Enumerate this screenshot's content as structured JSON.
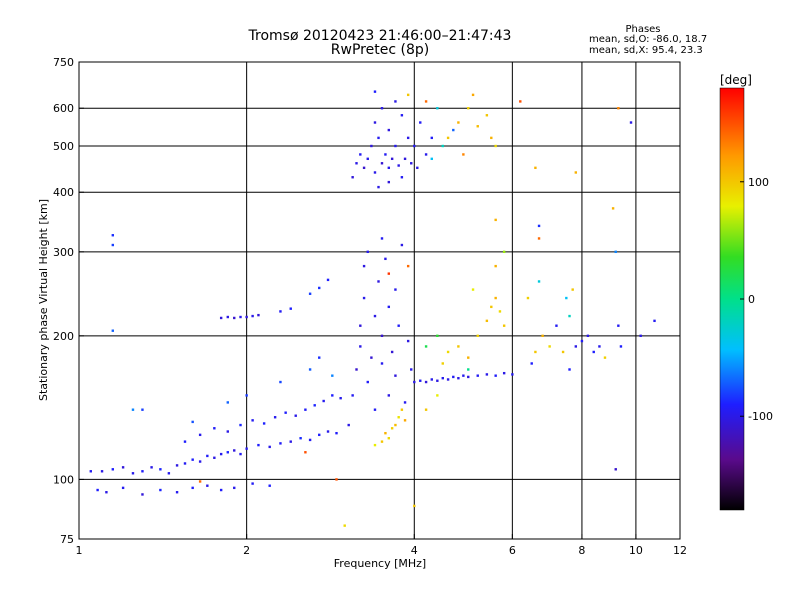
{
  "header": {
    "title_line1": "Tromsø 20120423 21:46:00–21:47:43",
    "title_line2": "RwPretec (8p)"
  },
  "phases_box": {
    "heading": "Phases",
    "line_o": "mean, sd,O: -86.0, 18.7",
    "line_x": "mean, sd,X:  95.4, 23.3"
  },
  "colorbar": {
    "label": "[deg]",
    "ticks": [
      {
        "value": 100,
        "label": "100"
      },
      {
        "value": 0,
        "label": "0"
      },
      {
        "value": -100,
        "label": "-100"
      }
    ],
    "range": [
      -180,
      180
    ]
  },
  "chart_data": {
    "type": "scatter",
    "xlabel": "Frequency [MHz]",
    "ylabel": "Stationary phase Virtual Height [km]",
    "x_scale": "log",
    "y_scale": "log",
    "xlim": [
      1,
      12
    ],
    "ylim": [
      75,
      750
    ],
    "grid": true,
    "x_ticks": [
      {
        "value": 1,
        "label": "1"
      },
      {
        "value": 2,
        "label": "2"
      },
      {
        "value": 4,
        "label": "4"
      },
      {
        "value": 6,
        "label": "6"
      },
      {
        "value": 8,
        "label": "8"
      },
      {
        "value": 10,
        "label": "10"
      },
      {
        "value": 12,
        "label": "12"
      }
    ],
    "x_grid": [
      2,
      4,
      6,
      8,
      10
    ],
    "y_ticks": [
      {
        "value": 75,
        "label": "75"
      },
      {
        "value": 100,
        "label": "100"
      },
      {
        "value": 200,
        "label": "200"
      },
      {
        "value": 300,
        "label": "300"
      },
      {
        "value": 400,
        "label": "400"
      },
      {
        "value": 500,
        "label": "500"
      },
      {
        "value": 600,
        "label": "600"
      },
      {
        "value": 750,
        "label": "750"
      }
    ],
    "y_grid": [
      100,
      200,
      300,
      400,
      500,
      600
    ],
    "color_key": "phase",
    "points": [
      {
        "f": 1.05,
        "h": 104,
        "p": -95
      },
      {
        "f": 1.1,
        "h": 104,
        "p": -100
      },
      {
        "f": 1.15,
        "h": 105,
        "p": -90
      },
      {
        "f": 1.2,
        "h": 106,
        "p": -105
      },
      {
        "f": 1.25,
        "h": 103,
        "p": -98
      },
      {
        "f": 1.3,
        "h": 104,
        "p": -92
      },
      {
        "f": 1.35,
        "h": 106,
        "p": -100
      },
      {
        "f": 1.4,
        "h": 105,
        "p": -88
      },
      {
        "f": 1.45,
        "h": 103,
        "p": -96
      },
      {
        "f": 1.5,
        "h": 107,
        "p": -102
      },
      {
        "f": 1.55,
        "h": 108,
        "p": -95
      },
      {
        "f": 1.6,
        "h": 110,
        "p": -90
      },
      {
        "f": 1.65,
        "h": 109,
        "p": -99
      },
      {
        "f": 1.7,
        "h": 112,
        "p": -93
      },
      {
        "f": 1.75,
        "h": 111,
        "p": -101
      },
      {
        "f": 1.8,
        "h": 113,
        "p": -96
      },
      {
        "f": 1.85,
        "h": 114,
        "p": -88
      },
      {
        "f": 1.9,
        "h": 115,
        "p": -104
      },
      {
        "f": 1.95,
        "h": 113,
        "p": -94
      },
      {
        "f": 2.0,
        "h": 116,
        "p": -97
      },
      {
        "f": 2.1,
        "h": 118,
        "p": -91
      },
      {
        "f": 2.2,
        "h": 117,
        "p": -99
      },
      {
        "f": 2.3,
        "h": 119,
        "p": -93
      },
      {
        "f": 2.4,
        "h": 120,
        "p": -100
      },
      {
        "f": 2.5,
        "h": 122,
        "p": -86
      },
      {
        "f": 2.6,
        "h": 121,
        "p": -95
      },
      {
        "f": 2.7,
        "h": 124,
        "p": -90
      },
      {
        "f": 2.8,
        "h": 126,
        "p": -98
      },
      {
        "f": 2.9,
        "h": 125,
        "p": -92
      },
      {
        "f": 1.08,
        "h": 95,
        "p": -90
      },
      {
        "f": 1.12,
        "h": 94,
        "p": -100
      },
      {
        "f": 1.2,
        "h": 96,
        "p": -95
      },
      {
        "f": 1.3,
        "h": 93,
        "p": -105
      },
      {
        "f": 1.4,
        "h": 95,
        "p": -88
      },
      {
        "f": 1.5,
        "h": 94,
        "p": -96
      },
      {
        "f": 1.6,
        "h": 96,
        "p": -90
      },
      {
        "f": 1.7,
        "h": 97,
        "p": -100
      },
      {
        "f": 1.8,
        "h": 95,
        "p": -92
      },
      {
        "f": 1.9,
        "h": 96,
        "p": -98
      },
      {
        "f": 2.05,
        "h": 98,
        "p": -94
      },
      {
        "f": 2.2,
        "h": 97,
        "p": -90
      },
      {
        "f": 1.55,
        "h": 120,
        "p": -90
      },
      {
        "f": 1.65,
        "h": 124,
        "p": -98
      },
      {
        "f": 1.75,
        "h": 128,
        "p": -93
      },
      {
        "f": 1.85,
        "h": 126,
        "p": -100
      },
      {
        "f": 1.95,
        "h": 130,
        "p": -87
      },
      {
        "f": 2.05,
        "h": 133,
        "p": -95
      },
      {
        "f": 2.15,
        "h": 131,
        "p": -89
      },
      {
        "f": 2.25,
        "h": 135,
        "p": -97
      },
      {
        "f": 2.35,
        "h": 138,
        "p": -91
      },
      {
        "f": 2.45,
        "h": 136,
        "p": -99
      },
      {
        "f": 2.55,
        "h": 140,
        "p": -93
      },
      {
        "f": 2.65,
        "h": 143,
        "p": -88
      },
      {
        "f": 2.75,
        "h": 146,
        "p": -96
      },
      {
        "f": 2.85,
        "h": 150,
        "p": -90
      },
      {
        "f": 2.95,
        "h": 148,
        "p": -98
      },
      {
        "f": 1.3,
        "h": 140,
        "p": -80
      },
      {
        "f": 1.6,
        "h": 132,
        "p": -75
      },
      {
        "f": 1.85,
        "h": 145,
        "p": -70
      },
      {
        "f": 2.0,
        "h": 150,
        "p": -82
      },
      {
        "f": 2.3,
        "h": 160,
        "p": -78
      },
      {
        "f": 2.6,
        "h": 170,
        "p": -72
      },
      {
        "f": 2.7,
        "h": 180,
        "p": -85
      },
      {
        "f": 2.85,
        "h": 165,
        "p": -60
      },
      {
        "f": 1.8,
        "h": 218,
        "p": -105
      },
      {
        "f": 1.85,
        "h": 219,
        "p": -100
      },
      {
        "f": 1.9,
        "h": 218,
        "p": -110
      },
      {
        "f": 1.95,
        "h": 219,
        "p": -98
      },
      {
        "f": 2.0,
        "h": 219,
        "p": -104
      },
      {
        "f": 2.05,
        "h": 220,
        "p": -99
      },
      {
        "f": 2.1,
        "h": 221,
        "p": -106
      },
      {
        "f": 2.3,
        "h": 225,
        "p": -95
      },
      {
        "f": 2.4,
        "h": 228,
        "p": -90
      },
      {
        "f": 2.6,
        "h": 245,
        "p": -80
      },
      {
        "f": 2.7,
        "h": 252,
        "p": -85
      },
      {
        "f": 2.8,
        "h": 262,
        "p": -90
      },
      {
        "f": 1.15,
        "h": 310,
        "p": -80
      },
      {
        "f": 1.15,
        "h": 325,
        "p": -85
      },
      {
        "f": 1.15,
        "h": 205,
        "p": -70
      },
      {
        "f": 3.05,
        "h": 130,
        "p": -100
      },
      {
        "f": 3.1,
        "h": 150,
        "p": -95
      },
      {
        "f": 3.15,
        "h": 170,
        "p": -110
      },
      {
        "f": 3.2,
        "h": 190,
        "p": -100
      },
      {
        "f": 3.2,
        "h": 210,
        "p": -105
      },
      {
        "f": 3.25,
        "h": 240,
        "p": -98
      },
      {
        "f": 3.25,
        "h": 280,
        "p": -102
      },
      {
        "f": 3.3,
        "h": 160,
        "p": -92
      },
      {
        "f": 3.3,
        "h": 300,
        "p": -97
      },
      {
        "f": 3.35,
        "h": 180,
        "p": -108
      },
      {
        "f": 3.4,
        "h": 220,
        "p": -100
      },
      {
        "f": 3.4,
        "h": 140,
        "p": -94
      },
      {
        "f": 3.45,
        "h": 260,
        "p": -103
      },
      {
        "f": 3.5,
        "h": 175,
        "p": -96
      },
      {
        "f": 3.5,
        "h": 200,
        "p": -110
      },
      {
        "f": 3.55,
        "h": 290,
        "p": -99
      },
      {
        "f": 3.6,
        "h": 150,
        "p": -101
      },
      {
        "f": 3.6,
        "h": 230,
        "p": -95
      },
      {
        "f": 3.65,
        "h": 185,
        "p": -107
      },
      {
        "f": 3.7,
        "h": 250,
        "p": -98
      },
      {
        "f": 3.7,
        "h": 165,
        "p": -104
      },
      {
        "f": 3.75,
        "h": 210,
        "p": -93
      },
      {
        "f": 3.8,
        "h": 310,
        "p": -100
      },
      {
        "f": 3.85,
        "h": 145,
        "p": -96
      },
      {
        "f": 3.9,
        "h": 195,
        "p": -102
      },
      {
        "f": 3.95,
        "h": 170,
        "p": -99
      },
      {
        "f": 3.4,
        "h": 118,
        "p": 80
      },
      {
        "f": 3.5,
        "h": 120,
        "p": 100
      },
      {
        "f": 3.55,
        "h": 125,
        "p": 110
      },
      {
        "f": 3.6,
        "h": 122,
        "p": 90
      },
      {
        "f": 3.65,
        "h": 128,
        "p": 95
      },
      {
        "f": 3.7,
        "h": 130,
        "p": 105
      },
      {
        "f": 3.75,
        "h": 135,
        "p": 85
      },
      {
        "f": 3.8,
        "h": 140,
        "p": 100
      },
      {
        "f": 3.85,
        "h": 133,
        "p": 115
      },
      {
        "f": 4.0,
        "h": 160,
        "p": -100
      },
      {
        "f": 4.1,
        "h": 161,
        "p": -95
      },
      {
        "f": 4.2,
        "h": 160,
        "p": -105
      },
      {
        "f": 4.3,
        "h": 162,
        "p": -98
      },
      {
        "f": 4.4,
        "h": 161,
        "p": -102
      },
      {
        "f": 4.5,
        "h": 163,
        "p": -96
      },
      {
        "f": 4.6,
        "h": 162,
        "p": -100
      },
      {
        "f": 4.7,
        "h": 164,
        "p": -94
      },
      {
        "f": 4.8,
        "h": 163,
        "p": -101
      },
      {
        "f": 4.9,
        "h": 165,
        "p": -97
      },
      {
        "f": 5.0,
        "h": 164,
        "p": -103
      },
      {
        "f": 5.2,
        "h": 165,
        "p": -95
      },
      {
        "f": 5.4,
        "h": 166,
        "p": -99
      },
      {
        "f": 5.6,
        "h": 165,
        "p": -92
      },
      {
        "f": 5.8,
        "h": 167,
        "p": -100
      },
      {
        "f": 6.0,
        "h": 166,
        "p": -96
      },
      {
        "f": 4.6,
        "h": 185,
        "p": 90
      },
      {
        "f": 4.8,
        "h": 190,
        "p": 100
      },
      {
        "f": 5.0,
        "h": 180,
        "p": 110
      },
      {
        "f": 5.2,
        "h": 200,
        "p": 95
      },
      {
        "f": 5.4,
        "h": 215,
        "p": 105
      },
      {
        "f": 5.5,
        "h": 230,
        "p": 100
      },
      {
        "f": 5.6,
        "h": 240,
        "p": 110
      },
      {
        "f": 5.7,
        "h": 225,
        "p": 90
      },
      {
        "f": 5.8,
        "h": 210,
        "p": 100
      },
      {
        "f": 4.2,
        "h": 140,
        "p": 100
      },
      {
        "f": 4.4,
        "h": 150,
        "p": 80
      },
      {
        "f": 4.5,
        "h": 175,
        "p": 95
      },
      {
        "f": 5.1,
        "h": 250,
        "p": 80
      },
      {
        "f": 5.6,
        "h": 280,
        "p": 110
      },
      {
        "f": 5.8,
        "h": 300,
        "p": 60
      },
      {
        "f": 4.2,
        "h": 190,
        "p": 20
      },
      {
        "f": 4.4,
        "h": 200,
        "p": 30
      },
      {
        "f": 5.0,
        "h": 170,
        "p": 0
      },
      {
        "f": 6.5,
        "h": 175,
        "p": -90
      },
      {
        "f": 6.6,
        "h": 185,
        "p": 100
      },
      {
        "f": 6.8,
        "h": 200,
        "p": 110
      },
      {
        "f": 7.0,
        "h": 190,
        "p": 90
      },
      {
        "f": 7.2,
        "h": 210,
        "p": -95
      },
      {
        "f": 7.4,
        "h": 185,
        "p": 100
      },
      {
        "f": 7.6,
        "h": 170,
        "p": -90
      },
      {
        "f": 7.8,
        "h": 190,
        "p": -100
      },
      {
        "f": 8.0,
        "h": 195,
        "p": -95
      },
      {
        "f": 8.2,
        "h": 200,
        "p": -100
      },
      {
        "f": 8.4,
        "h": 185,
        "p": -90
      },
      {
        "f": 8.6,
        "h": 190,
        "p": -98
      },
      {
        "f": 8.8,
        "h": 180,
        "p": 95
      },
      {
        "f": 7.5,
        "h": 240,
        "p": -40
      },
      {
        "f": 7.6,
        "h": 220,
        "p": -20
      },
      {
        "f": 7.7,
        "h": 250,
        "p": 100
      },
      {
        "f": 6.4,
        "h": 240,
        "p": 95
      },
      {
        "f": 6.7,
        "h": 260,
        "p": -30
      },
      {
        "f": 9.2,
        "h": 300,
        "p": -60
      },
      {
        "f": 9.3,
        "h": 210,
        "p": -95
      },
      {
        "f": 9.4,
        "h": 190,
        "p": -90
      },
      {
        "f": 10.2,
        "h": 200,
        "p": -100
      },
      {
        "f": 10.8,
        "h": 215,
        "p": -95
      },
      {
        "f": 9.2,
        "h": 105,
        "p": -110
      },
      {
        "f": 9.1,
        "h": 370,
        "p": 110
      },
      {
        "f": 6.7,
        "h": 340,
        "p": -85
      },
      {
        "f": 6.7,
        "h": 320,
        "p": 140
      },
      {
        "f": 6.6,
        "h": 450,
        "p": 110
      },
      {
        "f": 7.8,
        "h": 440,
        "p": 110
      },
      {
        "f": 9.3,
        "h": 600,
        "p": 130
      },
      {
        "f": 9.8,
        "h": 560,
        "p": -100
      },
      {
        "f": 6.2,
        "h": 620,
        "p": 150
      },
      {
        "f": 5.6,
        "h": 350,
        "p": 110
      },
      {
        "f": 3.1,
        "h": 430,
        "p": -105
      },
      {
        "f": 3.15,
        "h": 460,
        "p": -100
      },
      {
        "f": 3.2,
        "h": 480,
        "p": -95
      },
      {
        "f": 3.25,
        "h": 450,
        "p": -110
      },
      {
        "f": 3.3,
        "h": 470,
        "p": -98
      },
      {
        "f": 3.35,
        "h": 500,
        "p": -104
      },
      {
        "f": 3.4,
        "h": 440,
        "p": -99
      },
      {
        "f": 3.4,
        "h": 560,
        "p": -102
      },
      {
        "f": 3.45,
        "h": 520,
        "p": -96
      },
      {
        "f": 3.5,
        "h": 460,
        "p": -108
      },
      {
        "f": 3.5,
        "h": 600,
        "p": -100
      },
      {
        "f": 3.55,
        "h": 480,
        "p": -95
      },
      {
        "f": 3.6,
        "h": 540,
        "p": -103
      },
      {
        "f": 3.6,
        "h": 450,
        "p": -98
      },
      {
        "f": 3.65,
        "h": 470,
        "p": -106
      },
      {
        "f": 3.7,
        "h": 620,
        "p": -100
      },
      {
        "f": 3.7,
        "h": 500,
        "p": -97
      },
      {
        "f": 3.75,
        "h": 455,
        "p": -101
      },
      {
        "f": 3.8,
        "h": 580,
        "p": -95
      },
      {
        "f": 3.85,
        "h": 470,
        "p": -104
      },
      {
        "f": 3.9,
        "h": 520,
        "p": -99
      },
      {
        "f": 3.95,
        "h": 460,
        "p": -102
      },
      {
        "f": 4.0,
        "h": 500,
        "p": -96
      },
      {
        "f": 4.05,
        "h": 450,
        "p": -100
      },
      {
        "f": 4.1,
        "h": 560,
        "p": -94
      },
      {
        "f": 4.2,
        "h": 480,
        "p": -98
      },
      {
        "f": 4.3,
        "h": 520,
        "p": -92
      },
      {
        "f": 3.45,
        "h": 410,
        "p": -100
      },
      {
        "f": 3.6,
        "h": 420,
        "p": -105
      },
      {
        "f": 3.8,
        "h": 430,
        "p": -95
      },
      {
        "f": 3.4,
        "h": 650,
        "p": -90
      },
      {
        "f": 3.9,
        "h": 640,
        "p": 100
      },
      {
        "f": 4.6,
        "h": 520,
        "p": 100
      },
      {
        "f": 4.8,
        "h": 560,
        "p": 110
      },
      {
        "f": 5.0,
        "h": 600,
        "p": 95
      },
      {
        "f": 5.2,
        "h": 550,
        "p": 105
      },
      {
        "f": 5.4,
        "h": 580,
        "p": 100
      },
      {
        "f": 5.5,
        "h": 520,
        "p": 110
      },
      {
        "f": 5.6,
        "h": 500,
        "p": 90
      },
      {
        "f": 4.9,
        "h": 480,
        "p": 130
      },
      {
        "f": 5.1,
        "h": 640,
        "p": 115
      },
      {
        "f": 4.4,
        "h": 600,
        "p": -30
      },
      {
        "f": 4.5,
        "h": 500,
        "p": -20
      },
      {
        "f": 4.3,
        "h": 470,
        "p": -40
      },
      {
        "f": 4.7,
        "h": 540,
        "p": -70
      },
      {
        "f": 4.2,
        "h": 620,
        "p": 140
      },
      {
        "f": 3.0,
        "h": 80,
        "p": 90
      },
      {
        "f": 2.9,
        "h": 100,
        "p": 150
      },
      {
        "f": 4.0,
        "h": 88,
        "p": 100
      },
      {
        "f": 1.65,
        "h": 99,
        "p": 140
      },
      {
        "f": 2.55,
        "h": 114,
        "p": 150
      },
      {
        "f": 1.25,
        "h": 140,
        "p": -60
      },
      {
        "f": 3.9,
        "h": 280,
        "p": 140
      },
      {
        "f": 3.6,
        "h": 270,
        "p": 160
      },
      {
        "f": 3.5,
        "h": 320,
        "p": -95
      }
    ]
  }
}
